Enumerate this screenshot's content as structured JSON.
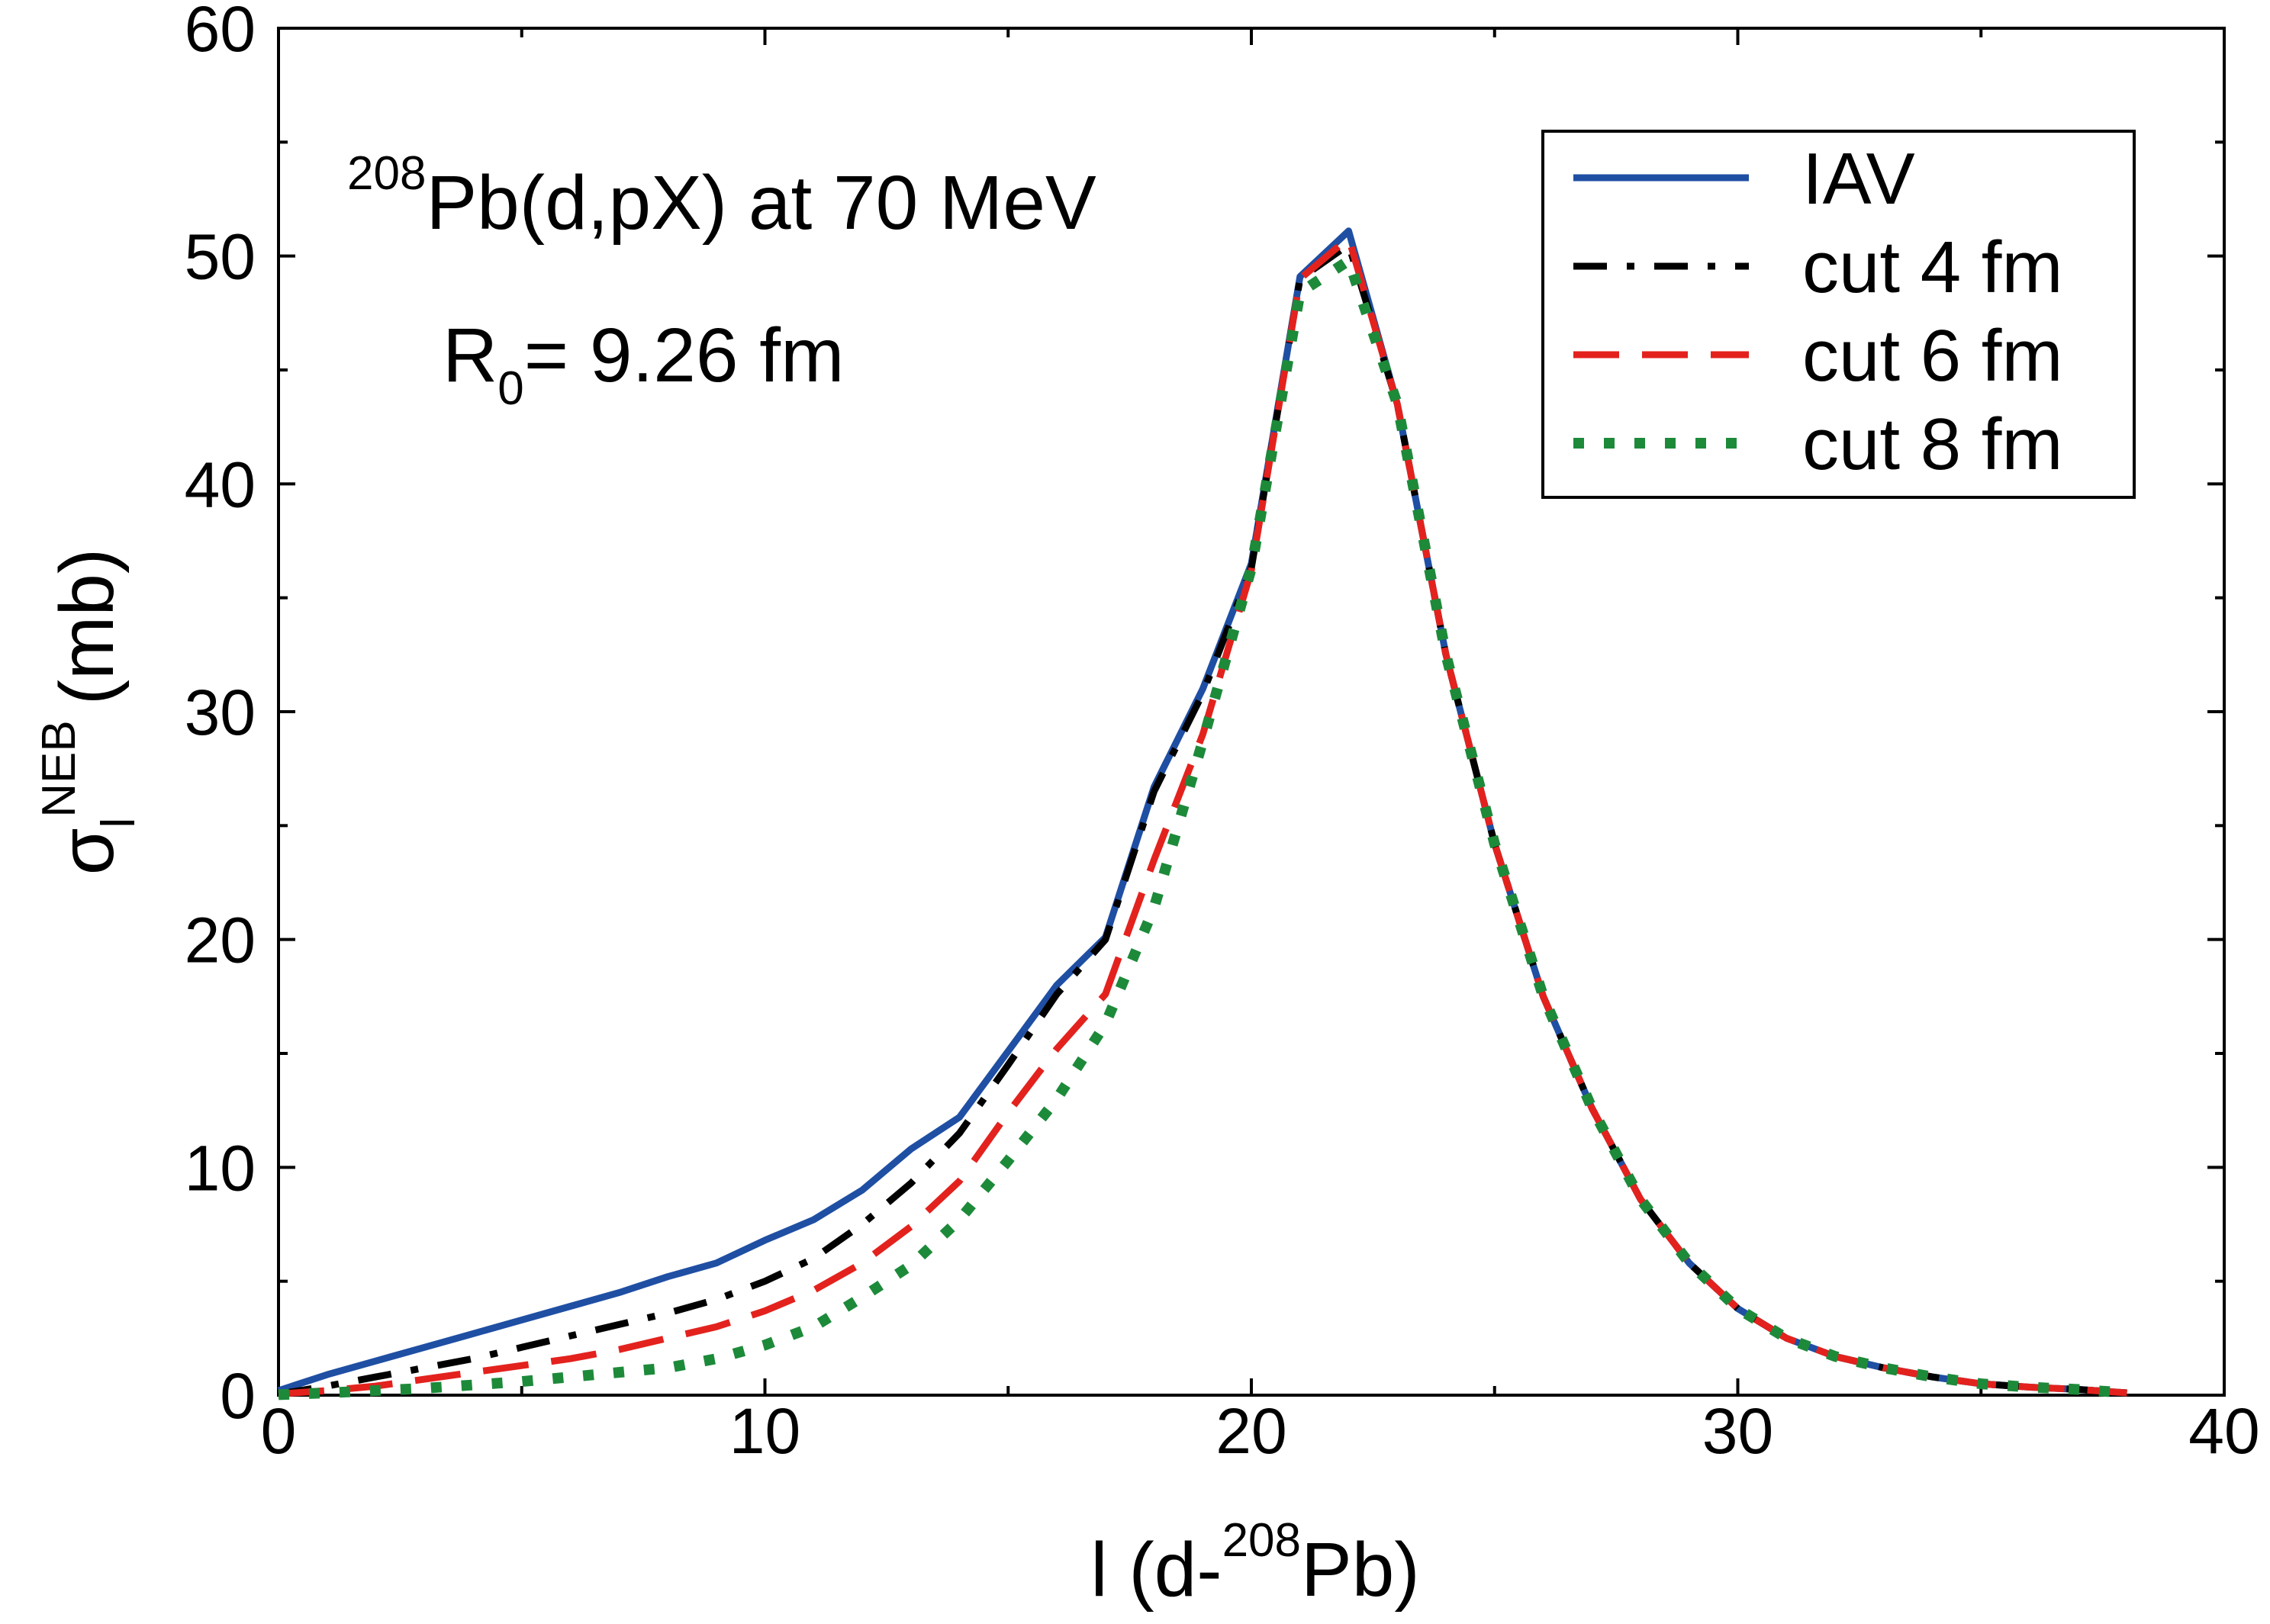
{
  "chart_data": {
    "type": "line",
    "xlabel": {
      "main": "l (d-",
      "sup": "208",
      "tail": "Pb)"
    },
    "ylabel": {
      "main": "σ",
      "sub": "l",
      "sup": "NEB",
      "tail": "(mb)"
    },
    "xlim": [
      0,
      40
    ],
    "ylim": [
      0,
      60
    ],
    "x_ticks": [
      0,
      10,
      20,
      30,
      40
    ],
    "y_ticks": [
      0,
      10,
      20,
      30,
      40,
      50,
      60
    ],
    "x_tick_labels": [
      "0",
      "10",
      "20",
      "30",
      "40"
    ],
    "y_tick_labels": [
      "0",
      "10",
      "20",
      "30",
      "40",
      "50",
      "60"
    ],
    "grid": false,
    "legend_position": "top-right",
    "annotations": {
      "reaction": {
        "sup": "208",
        "text": "Pb(d,pX) at 70 MeV"
      },
      "radius": {
        "main": "R",
        "sub": "0",
        "text": "= 9.26 fm"
      }
    },
    "series": [
      {
        "name": "IAV",
        "color": "#1f4fa3",
        "dash": "solid",
        "x": [
          0,
          1,
          2,
          3,
          4,
          5,
          6,
          7,
          8,
          9,
          10,
          11,
          12,
          13,
          14,
          15,
          16,
          17,
          18,
          19,
          20,
          21,
          22,
          23,
          24,
          25,
          26,
          27,
          28,
          29,
          30,
          31,
          32,
          33,
          34,
          35,
          36,
          37,
          38
        ],
        "y": [
          0.2,
          0.9,
          1.5,
          2.1,
          2.7,
          3.3,
          3.9,
          4.5,
          5.2,
          5.8,
          6.8,
          7.7,
          9.0,
          10.8,
          12.2,
          15.1,
          18.0,
          20.1,
          26.7,
          31.0,
          36.5,
          49.1,
          51.1,
          43.5,
          32.5,
          24.2,
          17.5,
          12.6,
          8.6,
          5.8,
          3.8,
          2.5,
          1.7,
          1.2,
          0.8,
          0.5,
          0.35,
          0.25,
          0.1
        ]
      },
      {
        "name": "cut 4 fm",
        "color": "#000000",
        "dash": "dash-dot",
        "x": [
          0,
          1,
          2,
          3,
          4,
          5,
          6,
          7,
          8,
          9,
          10,
          11,
          12,
          13,
          14,
          15,
          16,
          17,
          18,
          19,
          20,
          21,
          22,
          23,
          24,
          25,
          26,
          27,
          28,
          29,
          30,
          31,
          32,
          33,
          34,
          35,
          36,
          37,
          38
        ],
        "y": [
          0.05,
          0.4,
          0.8,
          1.2,
          1.6,
          2.1,
          2.6,
          3.1,
          3.6,
          4.2,
          5.0,
          6.0,
          7.5,
          9.3,
          11.5,
          14.5,
          17.6,
          20.0,
          26.5,
          30.8,
          36.3,
          49.0,
          50.5,
          43.5,
          32.5,
          24.2,
          17.5,
          12.6,
          8.6,
          5.8,
          3.8,
          2.5,
          1.7,
          1.2,
          0.8,
          0.5,
          0.35,
          0.25,
          0.1
        ]
      },
      {
        "name": "cut 6 fm",
        "color": "#e3221e",
        "dash": "dashed",
        "x": [
          0,
          1,
          2,
          3,
          4,
          5,
          6,
          7,
          8,
          9,
          10,
          11,
          12,
          13,
          14,
          15,
          16,
          17,
          18,
          19,
          20,
          21,
          22,
          23,
          24,
          25,
          26,
          27,
          28,
          29,
          30,
          31,
          32,
          33,
          34,
          35,
          36,
          37,
          38
        ],
        "y": [
          0.05,
          0.2,
          0.4,
          0.7,
          1.0,
          1.3,
          1.6,
          2.0,
          2.5,
          3.0,
          3.7,
          4.6,
          5.8,
          7.4,
          9.4,
          12.4,
          15.2,
          17.6,
          23.5,
          29.0,
          36.2,
          49.0,
          50.8,
          43.5,
          32.5,
          24.2,
          17.5,
          12.6,
          8.6,
          5.8,
          3.8,
          2.5,
          1.7,
          1.2,
          0.8,
          0.5,
          0.35,
          0.25,
          0.1
        ]
      },
      {
        "name": "cut 8 fm",
        "color": "#1d8a3a",
        "dash": "dotted",
        "x": [
          0,
          1,
          2,
          3,
          4,
          5,
          6,
          7,
          8,
          9,
          10,
          11,
          12,
          13,
          14,
          15,
          16,
          17,
          18,
          19,
          20,
          21,
          22,
          23,
          24,
          25,
          26,
          27,
          28,
          29,
          30,
          31,
          32,
          33,
          34,
          35,
          36,
          37,
          38
        ],
        "y": [
          0.02,
          0.1,
          0.2,
          0.3,
          0.45,
          0.6,
          0.8,
          1.0,
          1.2,
          1.6,
          2.2,
          3.0,
          4.3,
          5.7,
          7.7,
          10.3,
          13.0,
          16.3,
          21.4,
          28.7,
          36.3,
          48.4,
          49.8,
          43.5,
          32.5,
          24.2,
          17.5,
          12.6,
          8.6,
          5.8,
          3.8,
          2.5,
          1.7,
          1.2,
          0.8,
          0.5,
          0.35,
          0.25,
          0.1
        ]
      }
    ]
  }
}
